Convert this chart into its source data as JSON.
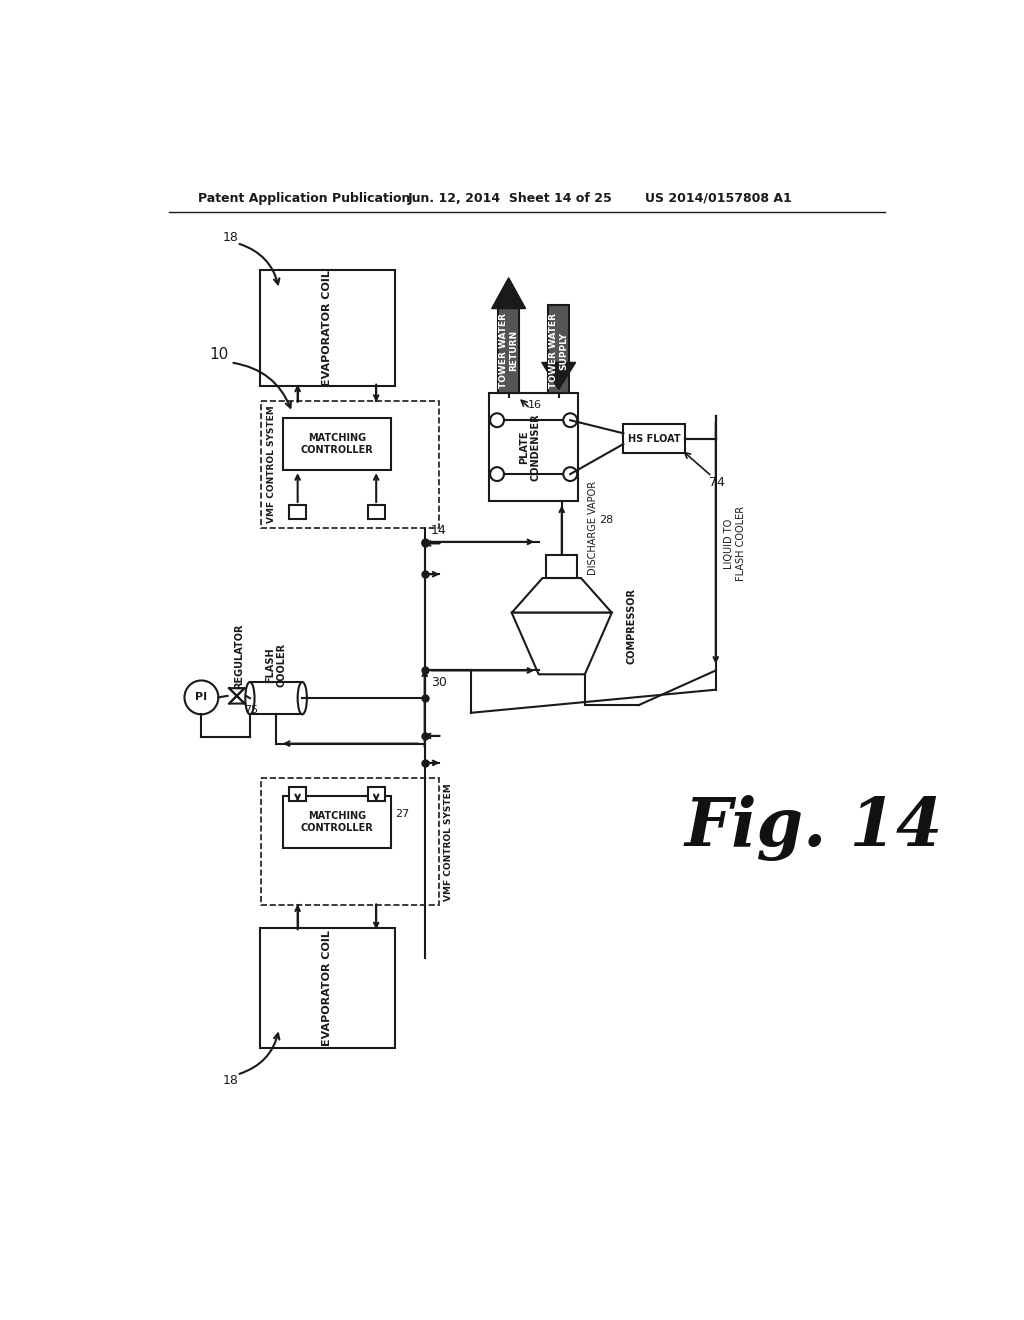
{
  "bg_color": "#ffffff",
  "lc": "#1a1a1a",
  "lw": 1.5,
  "header_left": "Patent Application Publication",
  "header_mid": "Jun. 12, 2014  Sheet 14 of 25",
  "header_right": "US 2014/0157808 A1",
  "fig_label": "Fig. 14",
  "label_10": "10",
  "label_14": "14",
  "label_16": "16",
  "label_18a": "18",
  "label_18b": "18",
  "label_27": "27",
  "label_28": "28",
  "label_30": "30",
  "label_74": "74",
  "label_75": "75",
  "evap_coil_text": "EVAPORATOR COIL",
  "vmf_upper_text": "VMF CONTROL SYSTEM",
  "vmf_lower_text": "VMF CONTROL SYSTEM",
  "matching_upper_text": "MATCHING\nCONTROLLER",
  "matching_lower_text": "MATCHING\nCONTROLLER",
  "plate_cond_text": "PLATE\nCONDENSER",
  "twr_text": "TOWER WATER\nRETURN",
  "tws_text": "TOWER WATER\nSUPPLY",
  "hs_float_text": "HS FLOAT",
  "compressor_text": "COMPRESSOR",
  "discharge_text": "DISCHARGE VAPOR",
  "liquid_flash_text": "LIQUID TO\nFLASH COOLER",
  "flash_cooler_text": "FLASH\nCOOLER",
  "regulator_text": "REGULATOR",
  "pi_text": "PI"
}
